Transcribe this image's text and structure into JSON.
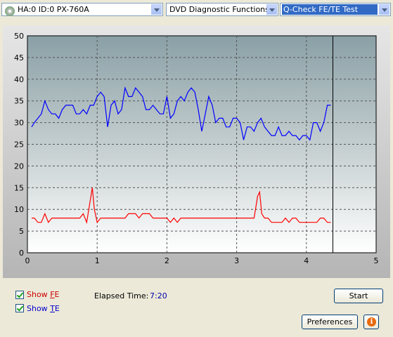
{
  "toolbar": {
    "drive_select": "HA:0 ID:0  PX-760A",
    "function_select": "DVD Diagnostic Functions",
    "test_select": "Q-Check FE/TE Test"
  },
  "controls": {
    "show_fe_label": "Show FE",
    "show_te_label": "Show TE",
    "show_fe_checked": true,
    "show_te_checked": true,
    "elapsed_label": "Elapsed Time:",
    "elapsed_value": "7:20",
    "start_label": "Start",
    "preferences_label": "Preferences",
    "info_glyph": "i"
  },
  "colors": {
    "fe_series": "#ff0000",
    "te_series": "#0000ff",
    "fe_label": "#cc0000",
    "te_label": "#0000cc",
    "elapsed_value": "#0000aa"
  },
  "chart_data": {
    "type": "line",
    "xlim": [
      0,
      5
    ],
    "ylim": [
      0,
      50
    ],
    "xticks": [
      0,
      1,
      2,
      3,
      4,
      5
    ],
    "yticks": [
      0,
      5,
      10,
      15,
      20,
      25,
      30,
      35,
      40,
      45,
      50
    ],
    "grid": true,
    "progress_marker_x": 4.38,
    "series": [
      {
        "name": "TE",
        "color": "#0000ff",
        "x": [
          0.06,
          0.1,
          0.15,
          0.2,
          0.25,
          0.3,
          0.35,
          0.4,
          0.45,
          0.5,
          0.55,
          0.6,
          0.65,
          0.7,
          0.75,
          0.8,
          0.85,
          0.9,
          0.95,
          1.0,
          1.05,
          1.1,
          1.15,
          1.2,
          1.25,
          1.3,
          1.35,
          1.4,
          1.45,
          1.5,
          1.55,
          1.6,
          1.65,
          1.7,
          1.75,
          1.8,
          1.85,
          1.9,
          1.95,
          2.0,
          2.05,
          2.1,
          2.15,
          2.2,
          2.25,
          2.3,
          2.35,
          2.4,
          2.45,
          2.5,
          2.55,
          2.6,
          2.65,
          2.7,
          2.75,
          2.8,
          2.85,
          2.9,
          2.95,
          3.0,
          3.05,
          3.1,
          3.15,
          3.2,
          3.25,
          3.3,
          3.35,
          3.4,
          3.45,
          3.5,
          3.55,
          3.6,
          3.65,
          3.7,
          3.75,
          3.8,
          3.85,
          3.9,
          3.95,
          4.0,
          4.05,
          4.1,
          4.15,
          4.2,
          4.25,
          4.3,
          4.35
        ],
        "values": [
          29,
          30,
          31,
          32,
          35,
          33,
          32,
          32,
          31,
          33,
          34,
          34,
          34,
          32,
          32,
          33,
          32,
          34,
          34,
          36,
          37,
          36,
          29,
          34,
          35,
          32,
          33,
          38,
          36,
          36,
          38,
          37,
          36,
          33,
          33,
          34,
          33,
          32,
          32,
          36,
          31,
          32,
          35,
          36,
          35,
          37,
          38,
          37,
          33,
          28,
          32,
          36,
          34,
          30,
          31,
          31,
          29,
          29,
          31,
          31,
          30,
          26,
          29,
          29,
          28,
          30,
          31,
          29,
          28,
          27,
          27,
          29,
          27,
          27,
          28,
          27,
          27,
          26,
          27,
          27,
          26,
          30,
          30,
          28,
          30,
          34,
          34
        ]
      },
      {
        "name": "FE",
        "color": "#ff0000",
        "x": [
          0.06,
          0.1,
          0.15,
          0.2,
          0.25,
          0.3,
          0.35,
          0.4,
          0.45,
          0.5,
          0.55,
          0.6,
          0.65,
          0.7,
          0.75,
          0.8,
          0.85,
          0.9,
          0.93,
          0.96,
          1.0,
          1.05,
          1.1,
          1.15,
          1.2,
          1.25,
          1.3,
          1.35,
          1.4,
          1.45,
          1.5,
          1.55,
          1.6,
          1.65,
          1.7,
          1.75,
          1.8,
          1.85,
          1.9,
          1.95,
          2.0,
          2.05,
          2.1,
          2.15,
          2.2,
          2.25,
          2.3,
          2.35,
          2.4,
          2.5,
          2.6,
          2.7,
          2.8,
          2.9,
          3.0,
          3.1,
          3.2,
          3.25,
          3.3,
          3.33,
          3.36,
          3.4,
          3.45,
          3.5,
          3.55,
          3.6,
          3.65,
          3.7,
          3.75,
          3.8,
          3.85,
          3.9,
          3.95,
          4.0,
          4.05,
          4.1,
          4.15,
          4.2,
          4.25,
          4.3,
          4.35
        ],
        "values": [
          8,
          8,
          7,
          7,
          9,
          7,
          8,
          8,
          8,
          8,
          8,
          8,
          8,
          8,
          8,
          9,
          7,
          12,
          15,
          10,
          7,
          8,
          8,
          8,
          8,
          8,
          8,
          8,
          8,
          9,
          9,
          9,
          8,
          9,
          9,
          9,
          8,
          8,
          8,
          8,
          8,
          7,
          8,
          7,
          8,
          8,
          8,
          8,
          8,
          8,
          8,
          8,
          8,
          8,
          8,
          8,
          8,
          8,
          13,
          14,
          9,
          8,
          8,
          7,
          7,
          7,
          7,
          8,
          7,
          8,
          8,
          7,
          7,
          7,
          7,
          7,
          7,
          8,
          8,
          7,
          7
        ]
      }
    ]
  }
}
